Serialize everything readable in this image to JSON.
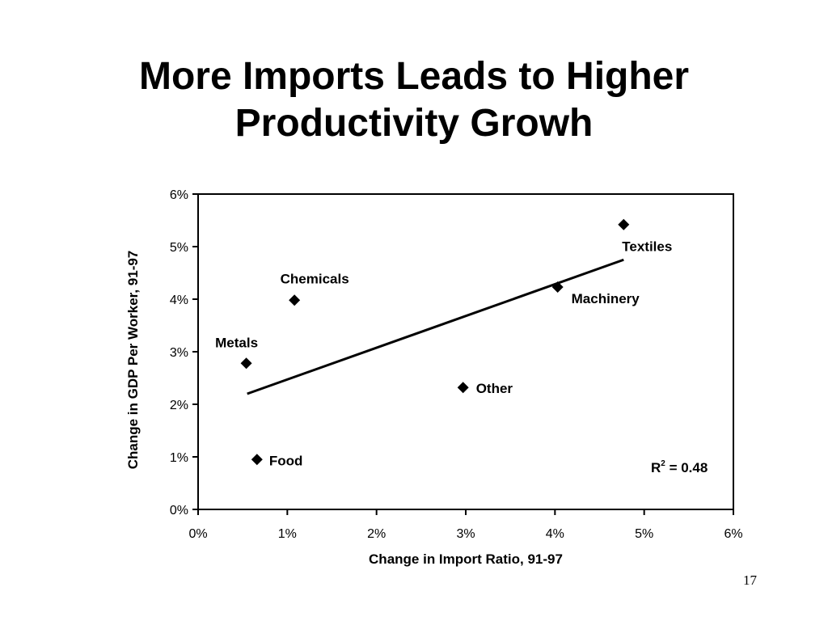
{
  "slide": {
    "title_line1": "More Imports Leads to Higher",
    "title_line2": "Productivity Growh",
    "page_number": "17"
  },
  "chart_data": {
    "type": "scatter",
    "title": "More Imports Leads to Higher Productivity Growh",
    "xlabel": "Change in Import Ratio, 91-97",
    "ylabel": "Change in GDP Per Worker, 91-97",
    "xlim": [
      0,
      6
    ],
    "ylim": [
      0,
      6
    ],
    "x_ticks": [
      0,
      1,
      2,
      3,
      4,
      5,
      6
    ],
    "y_ticks": [
      0,
      1,
      2,
      3,
      4,
      5,
      6
    ],
    "x_tick_labels": [
      "0%",
      "1%",
      "2%",
      "3%",
      "4%",
      "5%",
      "6%"
    ],
    "y_tick_labels": [
      "0%",
      "1%",
      "2%",
      "3%",
      "4%",
      "5%",
      "6%"
    ],
    "grid": false,
    "legend": "none",
    "points": [
      {
        "label": "Food",
        "x": 0.66,
        "y": 0.95
      },
      {
        "label": "Metals",
        "x": 0.54,
        "y": 2.78
      },
      {
        "label": "Chemicals",
        "x": 1.08,
        "y": 3.98
      },
      {
        "label": "Other",
        "x": 2.97,
        "y": 2.32
      },
      {
        "label": "Machinery",
        "x": 4.03,
        "y": 4.23
      },
      {
        "label": "Textiles",
        "x": 4.77,
        "y": 5.42
      }
    ],
    "trendline": {
      "x": [
        0.55,
        4.77
      ],
      "y": [
        2.2,
        4.75
      ]
    },
    "annotation": {
      "r2_prefix": "R",
      "r2_exp": "2",
      "r2_value": " = 0.48"
    },
    "colors": {
      "marker": "#000000",
      "line": "#000000",
      "axis": "#000000"
    }
  }
}
